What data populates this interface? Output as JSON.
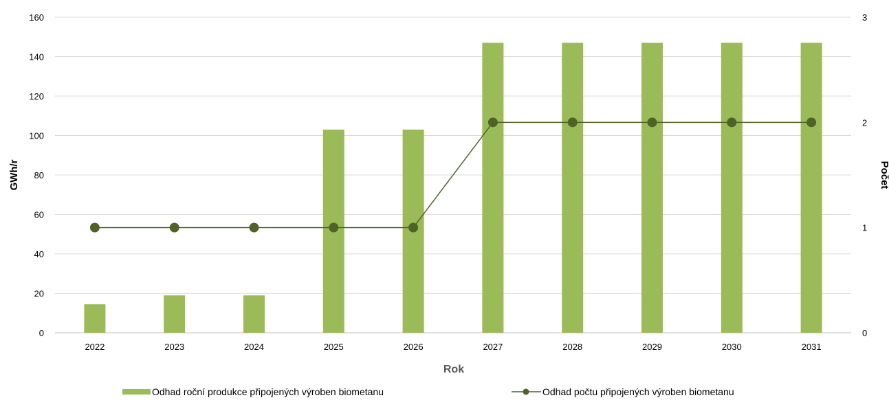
{
  "chart_data": {
    "type": "bar",
    "categories": [
      "2022",
      "2023",
      "2024",
      "2025",
      "2026",
      "2027",
      "2028",
      "2029",
      "2030",
      "2031"
    ],
    "series": [
      {
        "name": "Odhad roční produkce připojených výroben biometanu",
        "type": "bar",
        "axis": "left",
        "color": "#9BBB59",
        "values": [
          14.5,
          19,
          19,
          103,
          103,
          147,
          147,
          147,
          147,
          147
        ]
      },
      {
        "name": "Odhad počtu připojených výroben biometanu",
        "type": "line",
        "axis": "right",
        "color": "#4F6228",
        "values": [
          1,
          1,
          1,
          1,
          1,
          2,
          2,
          2,
          2,
          2
        ]
      }
    ],
    "xlabel": "Rok",
    "ylabel": "GWh/r",
    "y2label": "Počet",
    "ylim": [
      0,
      160
    ],
    "y2lim": [
      0,
      3
    ],
    "yticks": [
      "0",
      "20",
      "40",
      "60",
      "80",
      "100",
      "120",
      "140",
      "160"
    ],
    "y2ticks": [
      "0",
      "1",
      "2",
      "3"
    ],
    "grid": true,
    "legend": "bottom"
  }
}
